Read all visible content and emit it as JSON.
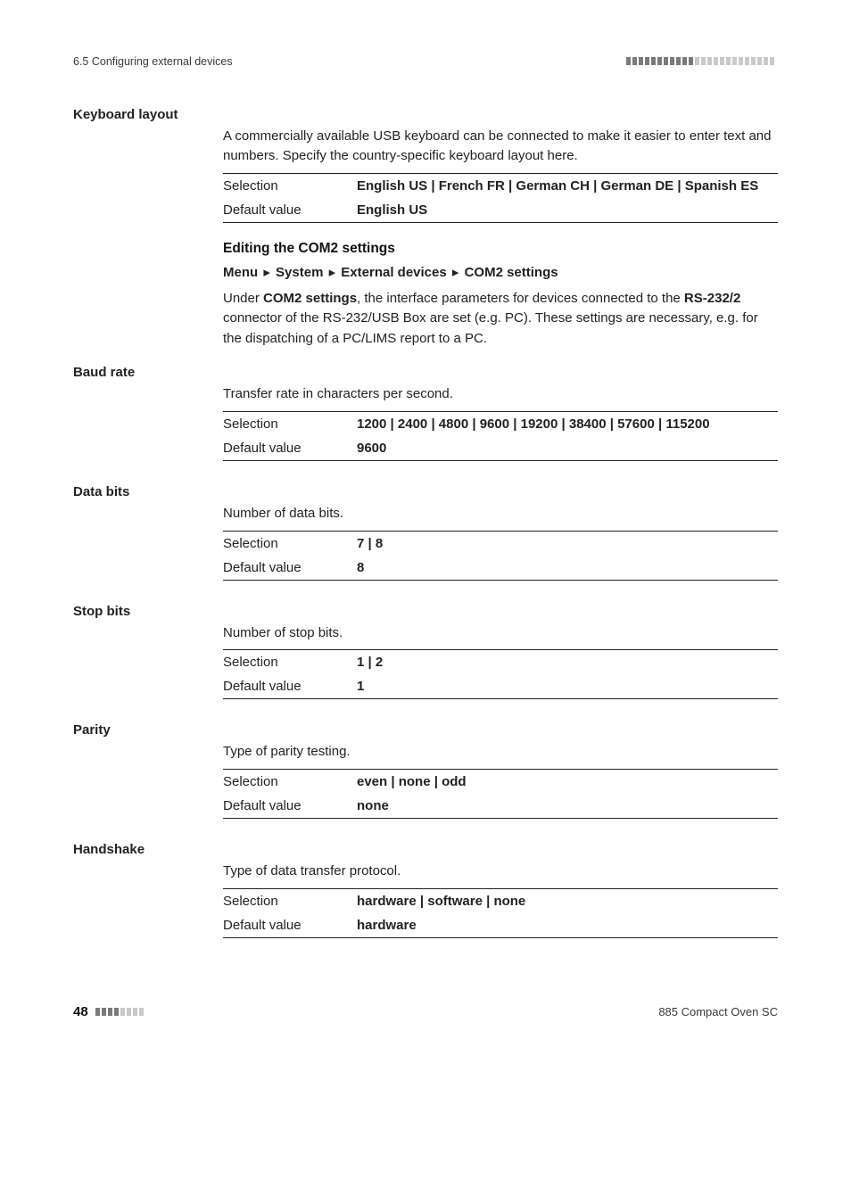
{
  "colors": {
    "background": "#ffffff",
    "text": "#222222",
    "rule": "#222222",
    "header_bar_dark": "#7a7a7a",
    "header_bar_light": "#c9c9c9",
    "footer_bar_dark": "#7a7a7a",
    "footer_bar_light": "#c9c9c9"
  },
  "typography": {
    "body_size_pt": 11,
    "header_size_pt": 9,
    "label_weight": 700
  },
  "header": {
    "left": "6.5 Configuring external devices",
    "bar_segments": 24
  },
  "sections": [
    {
      "label": "Keyboard layout",
      "paragraph": "A commercially available USB keyboard can be connected to make it easier to enter text and numbers. Specify the country-specific keyboard layout here.",
      "spec": {
        "selection": "English US | French FR | German CH | German DE | Spanish ES",
        "default_value": "English US"
      }
    }
  ],
  "com2_heading": "Editing the COM2 settings",
  "com2_menu": [
    "Menu",
    "System",
    "External devices",
    "COM2 settings"
  ],
  "com2_body_parts": {
    "pre": "Under ",
    "b1": "COM2 settings",
    "mid1": ", the interface parameters for devices connected to the ",
    "b2": "RS-232/2",
    "mid2": " connector of the RS-232/USB Box are set (e.g. PC). These settings are necessary, e.g. for the dispatching of a PC/LIMS report to a PC."
  },
  "com2_sections": [
    {
      "label": "Baud rate",
      "paragraph": "Transfer rate in characters per second.",
      "spec": {
        "selection": "1200 | 2400 | 4800 | 9600 | 19200 | 38400 | 57600 | 115200",
        "default_value": "9600"
      }
    },
    {
      "label": "Data bits",
      "paragraph": "Number of data bits.",
      "spec": {
        "selection": "7 | 8",
        "default_value": "8"
      }
    },
    {
      "label": "Stop bits",
      "paragraph": "Number of stop bits.",
      "spec": {
        "selection": "1 | 2",
        "default_value": "1"
      }
    },
    {
      "label": "Parity",
      "paragraph": "Type of parity testing.",
      "spec": {
        "selection": "even | none | odd",
        "default_value": "none"
      }
    },
    {
      "label": "Handshake",
      "paragraph": "Type of data transfer protocol.",
      "spec": {
        "selection": "hardware | software | none",
        "default_value": "hardware"
      }
    }
  ],
  "spec_labels": {
    "selection": "Selection",
    "default_value": "Default value"
  },
  "footer": {
    "page": "48",
    "bar_segments": 8,
    "right": "885 Compact Oven SC"
  }
}
